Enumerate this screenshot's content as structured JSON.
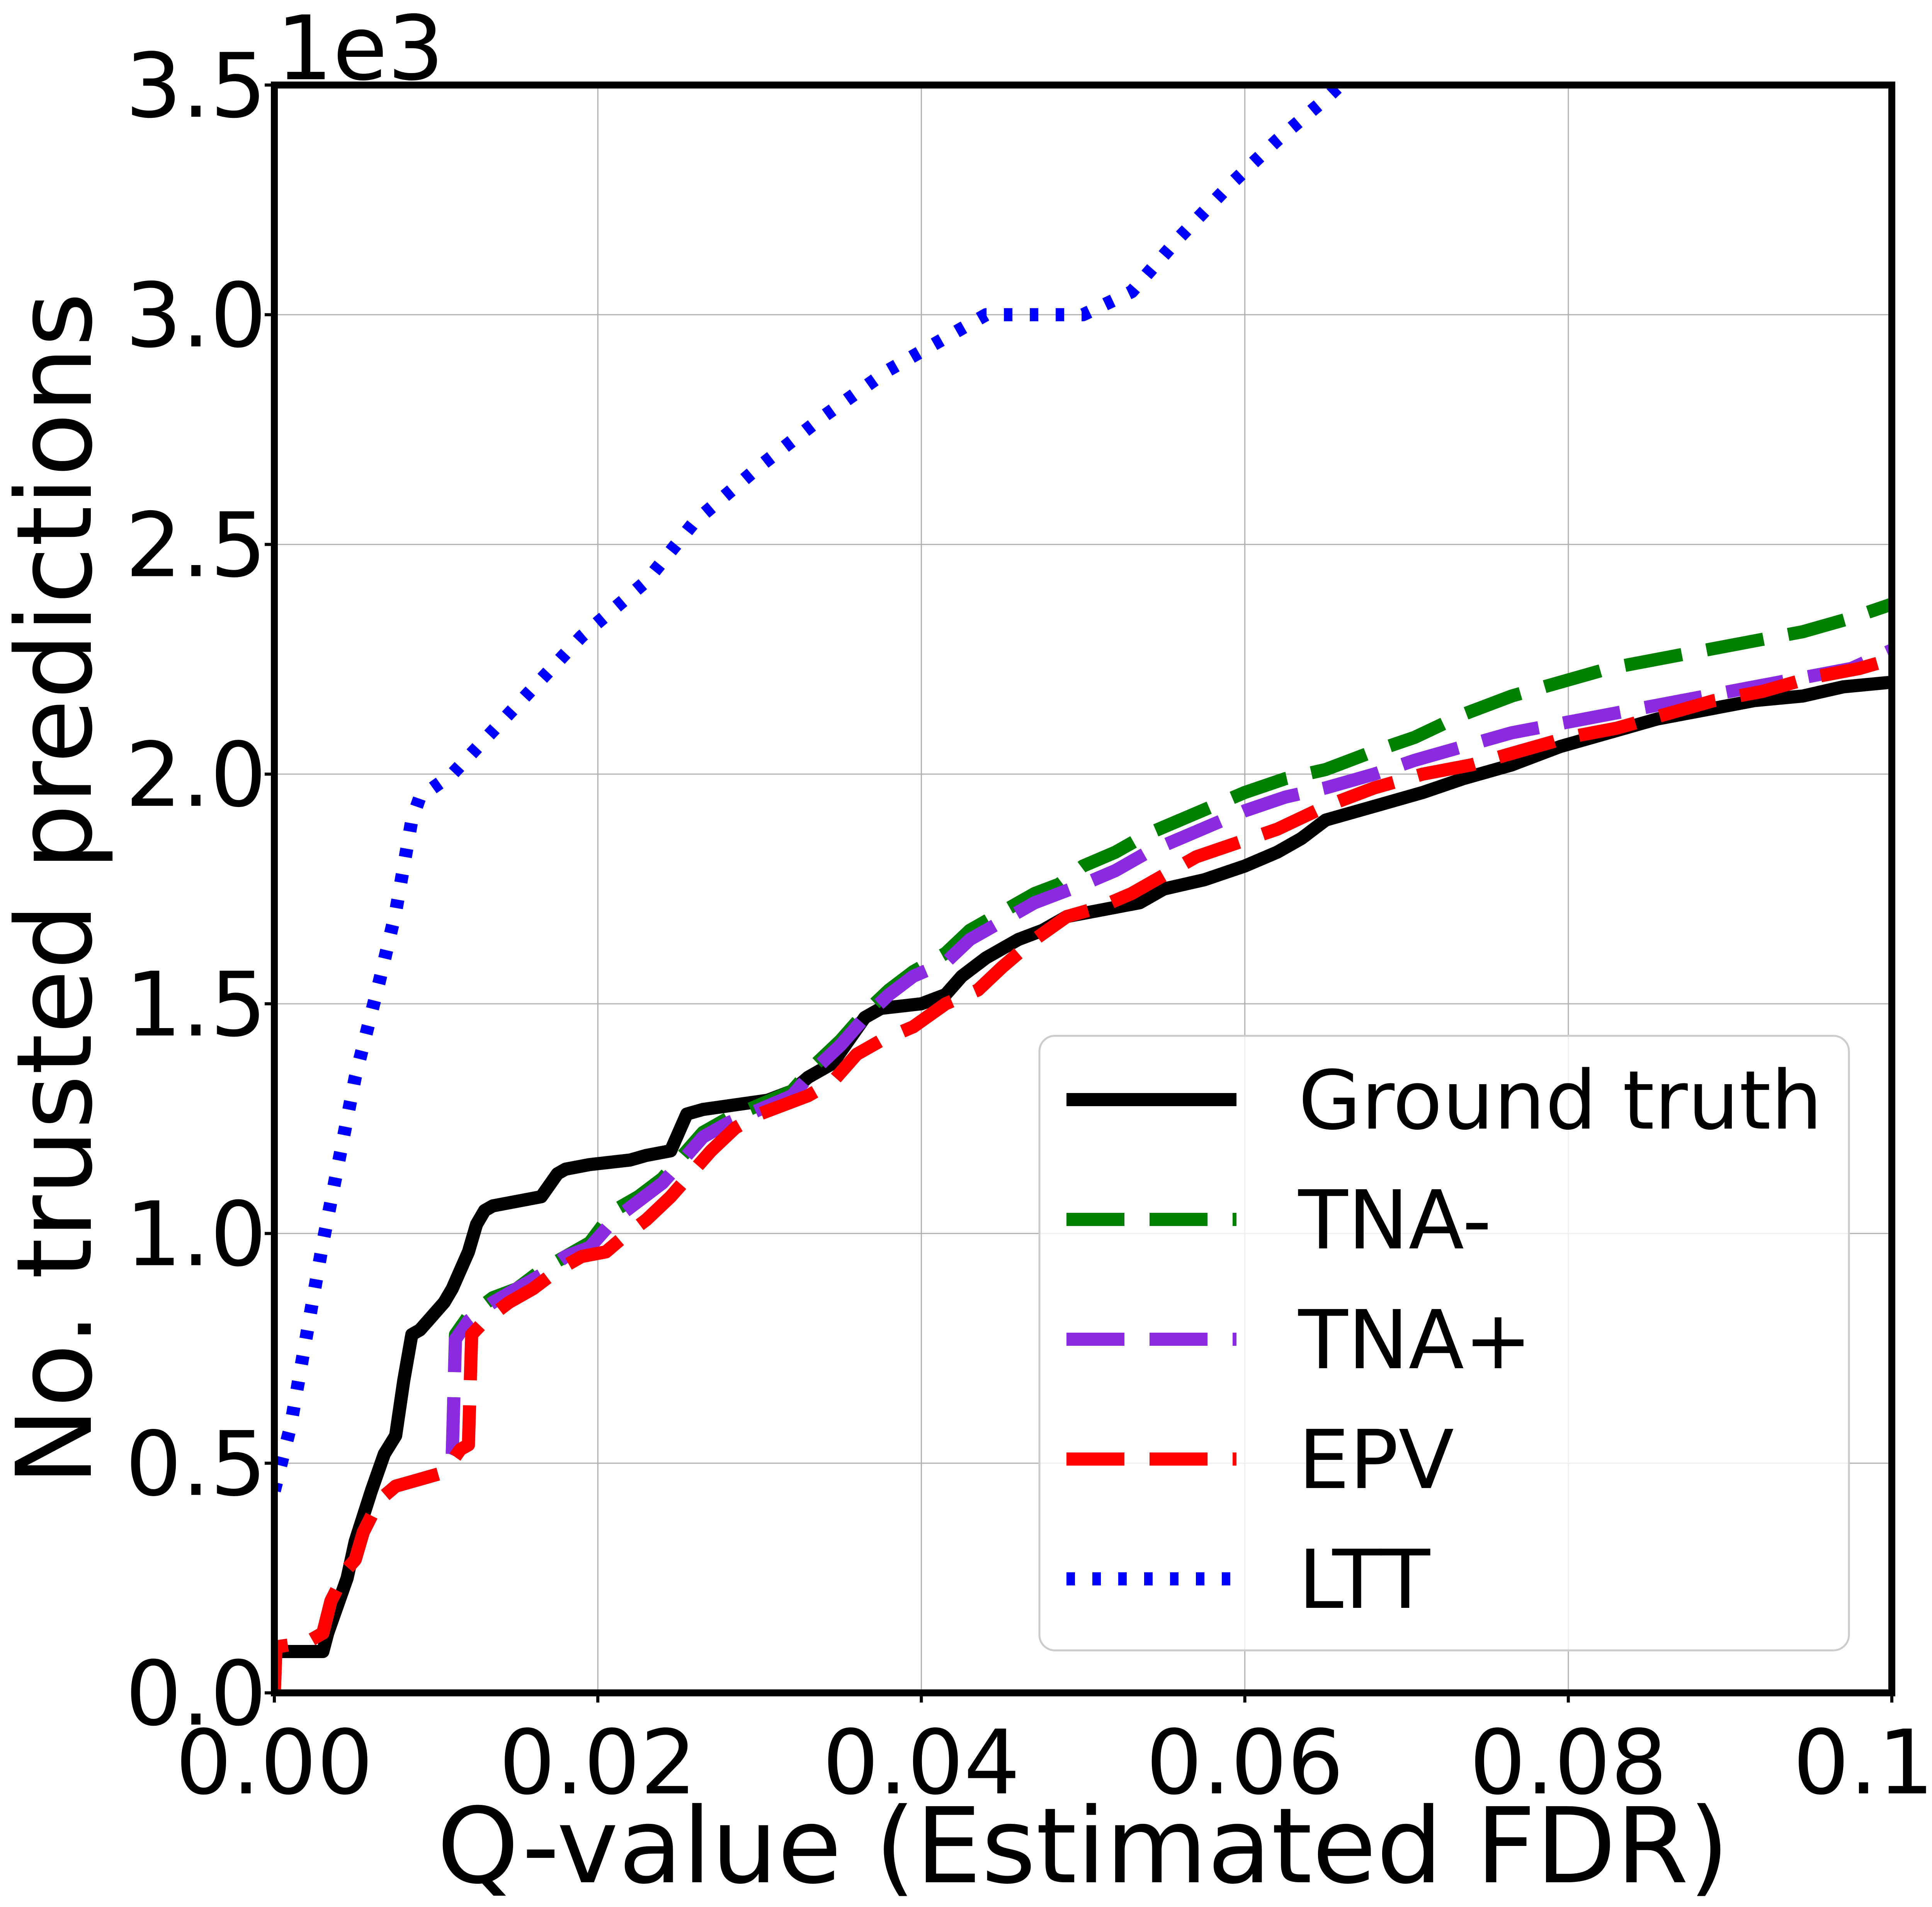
{
  "chart_data": {
    "type": "line",
    "xlabel": "Q-value (Estimated FDR)",
    "ylabel": "No. trusted predictions",
    "y_offset_text": "1e3",
    "xlim": [
      0.0,
      0.1
    ],
    "ylim": [
      0,
      3500
    ],
    "xticks": [
      "0.00",
      "0.02",
      "0.04",
      "0.06",
      "0.08",
      "0.10"
    ],
    "yticks": [
      "0.0",
      "0.5",
      "1.0",
      "1.5",
      "2.0",
      "2.5",
      "3.0",
      "3.5"
    ],
    "grid": true,
    "legend_position": "lower-right",
    "series": [
      {
        "name": "Ground truth",
        "color": "#000000",
        "style": "solid",
        "points": [
          [
            0.0,
            90
          ],
          [
            0.003,
            90
          ],
          [
            0.0033,
            130
          ],
          [
            0.0045,
            250
          ],
          [
            0.005,
            330
          ],
          [
            0.006,
            440
          ],
          [
            0.0068,
            520
          ],
          [
            0.0075,
            560
          ],
          [
            0.008,
            680
          ],
          [
            0.0085,
            780
          ],
          [
            0.009,
            790
          ],
          [
            0.0095,
            810
          ],
          [
            0.0105,
            850
          ],
          [
            0.011,
            880
          ],
          [
            0.0115,
            920
          ],
          [
            0.012,
            960
          ],
          [
            0.0125,
            1020
          ],
          [
            0.013,
            1050
          ],
          [
            0.0135,
            1060
          ],
          [
            0.015,
            1070
          ],
          [
            0.0165,
            1080
          ],
          [
            0.0175,
            1130
          ],
          [
            0.018,
            1140
          ],
          [
            0.0195,
            1150
          ],
          [
            0.022,
            1160
          ],
          [
            0.023,
            1170
          ],
          [
            0.0245,
            1180
          ],
          [
            0.025,
            1220
          ],
          [
            0.0255,
            1260
          ],
          [
            0.0265,
            1270
          ],
          [
            0.0285,
            1280
          ],
          [
            0.0305,
            1290
          ],
          [
            0.032,
            1310
          ],
          [
            0.033,
            1340
          ],
          [
            0.0345,
            1370
          ],
          [
            0.0355,
            1420
          ],
          [
            0.0365,
            1470
          ],
          [
            0.0375,
            1490
          ],
          [
            0.04,
            1500
          ],
          [
            0.0415,
            1520
          ],
          [
            0.0425,
            1560
          ],
          [
            0.044,
            1600
          ],
          [
            0.046,
            1640
          ],
          [
            0.0475,
            1660
          ],
          [
            0.049,
            1690
          ],
          [
            0.0505,
            1700
          ],
          [
            0.052,
            1710
          ],
          [
            0.0535,
            1720
          ],
          [
            0.055,
            1750
          ],
          [
            0.0575,
            1770
          ],
          [
            0.06,
            1800
          ],
          [
            0.062,
            1830
          ],
          [
            0.0635,
            1860
          ],
          [
            0.065,
            1900
          ],
          [
            0.068,
            1930
          ],
          [
            0.071,
            1960
          ],
          [
            0.0735,
            1990
          ],
          [
            0.0765,
            2020
          ],
          [
            0.0795,
            2060
          ],
          [
            0.0825,
            2090
          ],
          [
            0.0855,
            2120
          ],
          [
            0.0885,
            2140
          ],
          [
            0.0915,
            2160
          ],
          [
            0.0945,
            2170
          ],
          [
            0.097,
            2190
          ],
          [
            0.1,
            2200
          ]
        ]
      },
      {
        "name": "TNA-",
        "color": "#008000",
        "style": "dashed",
        "points": [
          [
            0.0,
            0
          ],
          [
            0.0001,
            100
          ],
          [
            0.002,
            110
          ],
          [
            0.003,
            130
          ],
          [
            0.0035,
            200
          ],
          [
            0.0045,
            270
          ],
          [
            0.005,
            290
          ],
          [
            0.0055,
            350
          ],
          [
            0.0065,
            420
          ],
          [
            0.0075,
            450
          ],
          [
            0.0085,
            460
          ],
          [
            0.0095,
            470
          ],
          [
            0.0105,
            480
          ],
          [
            0.011,
            520
          ],
          [
            0.0112,
            780
          ],
          [
            0.012,
            820
          ],
          [
            0.0135,
            860
          ],
          [
            0.015,
            880
          ],
          [
            0.0165,
            920
          ],
          [
            0.018,
            950
          ],
          [
            0.0195,
            980
          ],
          [
            0.021,
            1050
          ],
          [
            0.0225,
            1080
          ],
          [
            0.024,
            1120
          ],
          [
            0.025,
            1160
          ],
          [
            0.0265,
            1220
          ],
          [
            0.028,
            1250
          ],
          [
            0.03,
            1280
          ],
          [
            0.032,
            1310
          ],
          [
            0.0335,
            1370
          ],
          [
            0.035,
            1420
          ],
          [
            0.0365,
            1480
          ],
          [
            0.038,
            1530
          ],
          [
            0.0395,
            1570
          ],
          [
            0.0415,
            1610
          ],
          [
            0.043,
            1660
          ],
          [
            0.045,
            1700
          ],
          [
            0.047,
            1740
          ],
          [
            0.0485,
            1760
          ],
          [
            0.05,
            1800
          ],
          [
            0.052,
            1830
          ],
          [
            0.054,
            1870
          ],
          [
            0.056,
            1900
          ],
          [
            0.058,
            1930
          ],
          [
            0.06,
            1960
          ],
          [
            0.0625,
            1990
          ],
          [
            0.065,
            2010
          ],
          [
            0.068,
            2050
          ],
          [
            0.0705,
            2080
          ],
          [
            0.0735,
            2130
          ],
          [
            0.0765,
            2170
          ],
          [
            0.0795,
            2200
          ],
          [
            0.0825,
            2230
          ],
          [
            0.0855,
            2250
          ],
          [
            0.0885,
            2270
          ],
          [
            0.0915,
            2290
          ],
          [
            0.0945,
            2310
          ],
          [
            0.0975,
            2340
          ],
          [
            0.1,
            2370
          ]
        ]
      },
      {
        "name": "TNA+",
        "color": "#8a2be2",
        "style": "dashed",
        "points": [
          [
            0.0,
            0
          ],
          [
            0.0001,
            100
          ],
          [
            0.002,
            110
          ],
          [
            0.003,
            130
          ],
          [
            0.0035,
            200
          ],
          [
            0.0045,
            270
          ],
          [
            0.005,
            290
          ],
          [
            0.0055,
            350
          ],
          [
            0.0065,
            420
          ],
          [
            0.0075,
            450
          ],
          [
            0.0085,
            460
          ],
          [
            0.0095,
            470
          ],
          [
            0.0105,
            480
          ],
          [
            0.011,
            520
          ],
          [
            0.0112,
            770
          ],
          [
            0.012,
            810
          ],
          [
            0.0135,
            850
          ],
          [
            0.015,
            880
          ],
          [
            0.0165,
            910
          ],
          [
            0.018,
            950
          ],
          [
            0.0195,
            970
          ],
          [
            0.021,
            1030
          ],
          [
            0.0225,
            1070
          ],
          [
            0.024,
            1110
          ],
          [
            0.025,
            1150
          ],
          [
            0.0265,
            1210
          ],
          [
            0.028,
            1240
          ],
          [
            0.03,
            1270
          ],
          [
            0.032,
            1300
          ],
          [
            0.0335,
            1360
          ],
          [
            0.035,
            1410
          ],
          [
            0.0365,
            1470
          ],
          [
            0.038,
            1520
          ],
          [
            0.0395,
            1560
          ],
          [
            0.0415,
            1590
          ],
          [
            0.043,
            1640
          ],
          [
            0.045,
            1680
          ],
          [
            0.047,
            1720
          ],
          [
            0.0485,
            1740
          ],
          [
            0.05,
            1760
          ],
          [
            0.052,
            1790
          ],
          [
            0.054,
            1830
          ],
          [
            0.056,
            1860
          ],
          [
            0.058,
            1890
          ],
          [
            0.06,
            1920
          ],
          [
            0.0625,
            1950
          ],
          [
            0.065,
            1970
          ],
          [
            0.068,
            2000
          ],
          [
            0.0705,
            2030
          ],
          [
            0.0735,
            2060
          ],
          [
            0.0765,
            2090
          ],
          [
            0.0795,
            2110
          ],
          [
            0.0825,
            2130
          ],
          [
            0.0855,
            2150
          ],
          [
            0.0885,
            2170
          ],
          [
            0.0915,
            2190
          ],
          [
            0.0945,
            2210
          ],
          [
            0.0975,
            2230
          ],
          [
            0.1,
            2270
          ]
        ]
      },
      {
        "name": "EPV",
        "color": "#ff0000",
        "style": "dashed",
        "points": [
          [
            0.0,
            0
          ],
          [
            0.0001,
            100
          ],
          [
            0.002,
            110
          ],
          [
            0.003,
            130
          ],
          [
            0.0035,
            200
          ],
          [
            0.0045,
            270
          ],
          [
            0.005,
            290
          ],
          [
            0.0055,
            350
          ],
          [
            0.0065,
            420
          ],
          [
            0.0075,
            450
          ],
          [
            0.0085,
            460
          ],
          [
            0.0095,
            470
          ],
          [
            0.0105,
            480
          ],
          [
            0.0115,
            530
          ],
          [
            0.012,
            540
          ],
          [
            0.0122,
            780
          ],
          [
            0.013,
            810
          ],
          [
            0.0145,
            850
          ],
          [
            0.016,
            880
          ],
          [
            0.0175,
            920
          ],
          [
            0.019,
            950
          ],
          [
            0.0205,
            960
          ],
          [
            0.0215,
            990
          ],
          [
            0.023,
            1030
          ],
          [
            0.0245,
            1080
          ],
          [
            0.0255,
            1120
          ],
          [
            0.027,
            1180
          ],
          [
            0.0285,
            1230
          ],
          [
            0.03,
            1260
          ],
          [
            0.0315,
            1280
          ],
          [
            0.033,
            1300
          ],
          [
            0.0345,
            1330
          ],
          [
            0.036,
            1390
          ],
          [
            0.0375,
            1420
          ],
          [
            0.0395,
            1450
          ],
          [
            0.0415,
            1500
          ],
          [
            0.0435,
            1530
          ],
          [
            0.045,
            1580
          ],
          [
            0.047,
            1640
          ],
          [
            0.049,
            1690
          ],
          [
            0.051,
            1710
          ],
          [
            0.053,
            1740
          ],
          [
            0.055,
            1780
          ],
          [
            0.057,
            1820
          ],
          [
            0.0595,
            1850
          ],
          [
            0.062,
            1880
          ],
          [
            0.065,
            1930
          ],
          [
            0.068,
            1970
          ],
          [
            0.071,
            2000
          ],
          [
            0.074,
            2020
          ],
          [
            0.077,
            2050
          ],
          [
            0.08,
            2080
          ],
          [
            0.083,
            2100
          ],
          [
            0.086,
            2130
          ],
          [
            0.089,
            2160
          ],
          [
            0.092,
            2180
          ],
          [
            0.095,
            2210
          ],
          [
            0.098,
            2230
          ],
          [
            0.1,
            2250
          ]
        ]
      },
      {
        "name": "LTT",
        "color": "#0000ff",
        "style": "dotted",
        "points": [
          [
            0.0,
            440
          ],
          [
            0.001,
            580
          ],
          [
            0.002,
            780
          ],
          [
            0.003,
            980
          ],
          [
            0.004,
            1160
          ],
          [
            0.005,
            1340
          ],
          [
            0.0065,
            1550
          ],
          [
            0.0075,
            1700
          ],
          [
            0.0085,
            1900
          ],
          [
            0.009,
            1950
          ],
          [
            0.011,
            2000
          ],
          [
            0.015,
            2150
          ],
          [
            0.019,
            2300
          ],
          [
            0.023,
            2420
          ],
          [
            0.026,
            2550
          ],
          [
            0.03,
            2670
          ],
          [
            0.034,
            2780
          ],
          [
            0.038,
            2880
          ],
          [
            0.042,
            2960
          ],
          [
            0.044,
            3000
          ],
          [
            0.05,
            3000
          ],
          [
            0.053,
            3050
          ],
          [
            0.056,
            3170
          ],
          [
            0.059,
            3280
          ],
          [
            0.062,
            3380
          ],
          [
            0.065,
            3470
          ],
          [
            0.0665,
            3520
          ]
        ]
      }
    ]
  }
}
